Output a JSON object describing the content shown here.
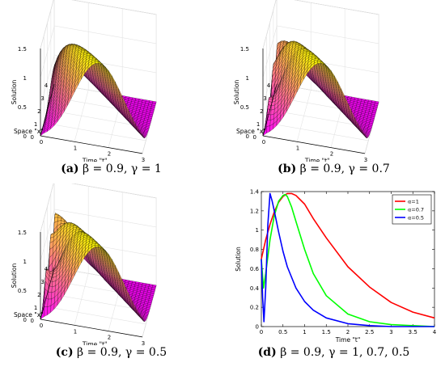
{
  "figure": {
    "panels": [
      {
        "tag": "(a)",
        "caption": "β = 0.9, γ = 1"
      },
      {
        "tag": "(b)",
        "caption": "β = 0.9, γ = 0.7"
      },
      {
        "tag": "(c)",
        "caption": "β = 0.9, γ = 0.5"
      },
      {
        "tag": "(d)",
        "caption": "β = 0.9, γ = 1, 0.7, 0.5"
      }
    ]
  },
  "colors": {
    "surface_top": "#ffff00",
    "surface_bottom": "#ff00ff",
    "mesh": "#000000"
  },
  "chart_data": [
    {
      "type": "surface",
      "panel": "a",
      "zlabel": "Solution",
      "xlabel": "Space \"x\"",
      "ylabel": "Time \"t\"",
      "x_ticks": [
        "0",
        "1",
        "2",
        "3",
        "4"
      ],
      "t_ticks": [
        "0",
        "1",
        "2",
        "3"
      ],
      "z_ticks": [
        "0",
        "0.5",
        "1",
        "1.5"
      ],
      "xlim": [
        0,
        4
      ],
      "tlim": [
        0,
        3
      ],
      "zlim": [
        0,
        1.5
      ],
      "gamma": 1
    },
    {
      "type": "surface",
      "panel": "b",
      "zlabel": "Solution",
      "xlabel": "Space \"x\"",
      "ylabel": "Time \"t\"",
      "x_ticks": [
        "0",
        "1",
        "2",
        "3",
        "4"
      ],
      "t_ticks": [
        "0",
        "1",
        "2",
        "3"
      ],
      "z_ticks": [
        "0",
        "0.5",
        "1",
        "1.5"
      ],
      "xlim": [
        0,
        4
      ],
      "tlim": [
        0,
        3
      ],
      "zlim": [
        0,
        1.5
      ],
      "gamma": 0.7
    },
    {
      "type": "surface",
      "panel": "c",
      "zlabel": "Solution",
      "xlabel": "Space \"x\"",
      "ylabel": "Time \"t\"",
      "x_ticks": [
        "0",
        "1",
        "2",
        "3",
        "4"
      ],
      "t_ticks": [
        "0",
        "1",
        "2",
        "3"
      ],
      "z_ticks": [
        "0",
        "0.5",
        "1",
        "1.5"
      ],
      "xlim": [
        0,
        4
      ],
      "tlim": [
        0,
        3
      ],
      "zlim": [
        0,
        1.5
      ],
      "gamma": 0.5
    },
    {
      "type": "line",
      "panel": "d",
      "xlabel": "Time \"t\"",
      "ylabel": "Solution",
      "xlim": [
        0,
        4
      ],
      "ylim": [
        0,
        1.4
      ],
      "x_ticks": [
        "0",
        "0.5",
        "1",
        "1.5",
        "2",
        "2.5",
        "3",
        "3.5",
        "4"
      ],
      "y_ticks": [
        "0",
        "0.2",
        "0.4",
        "0.6",
        "0.8",
        "1",
        "1.2",
        "1.4"
      ],
      "legend_position": "top-right",
      "series": [
        {
          "name": "α=1",
          "color": "#ff0000",
          "x": [
            0,
            0.1,
            0.2,
            0.3,
            0.4,
            0.5,
            0.6,
            0.7,
            0.8,
            1.0,
            1.2,
            1.5,
            2.0,
            2.5,
            3.0,
            3.5,
            4.0
          ],
          "y": [
            0.7,
            0.9,
            1.06,
            1.19,
            1.29,
            1.35,
            1.38,
            1.38,
            1.36,
            1.27,
            1.12,
            0.92,
            0.62,
            0.41,
            0.25,
            0.15,
            0.09
          ]
        },
        {
          "name": "α=0.7",
          "color": "#00ff00",
          "x": [
            0,
            0.05,
            0.1,
            0.2,
            0.3,
            0.4,
            0.5,
            0.55,
            0.6,
            0.7,
            0.8,
            1.0,
            1.2,
            1.5,
            2.0,
            2.5,
            3.0,
            3.5,
            4.0
          ],
          "y": [
            0.7,
            0.4,
            0.55,
            0.9,
            1.15,
            1.3,
            1.36,
            1.37,
            1.35,
            1.24,
            1.09,
            0.8,
            0.55,
            0.32,
            0.13,
            0.05,
            0.02,
            0.01,
            0.0
          ]
        },
        {
          "name": "α=0.5",
          "color": "#0000ff",
          "x": [
            0,
            0.03,
            0.06,
            0.1,
            0.15,
            0.2,
            0.25,
            0.3,
            0.4,
            0.5,
            0.6,
            0.8,
            1.0,
            1.2,
            1.5,
            2.0,
            2.5,
            3.0,
            3.5,
            4.0
          ],
          "y": [
            0.7,
            0.3,
            0.05,
            0.4,
            1.05,
            1.38,
            1.3,
            1.2,
            0.98,
            0.78,
            0.62,
            0.4,
            0.26,
            0.17,
            0.09,
            0.03,
            0.01,
            0.0,
            0.0,
            0.0
          ]
        }
      ]
    }
  ]
}
